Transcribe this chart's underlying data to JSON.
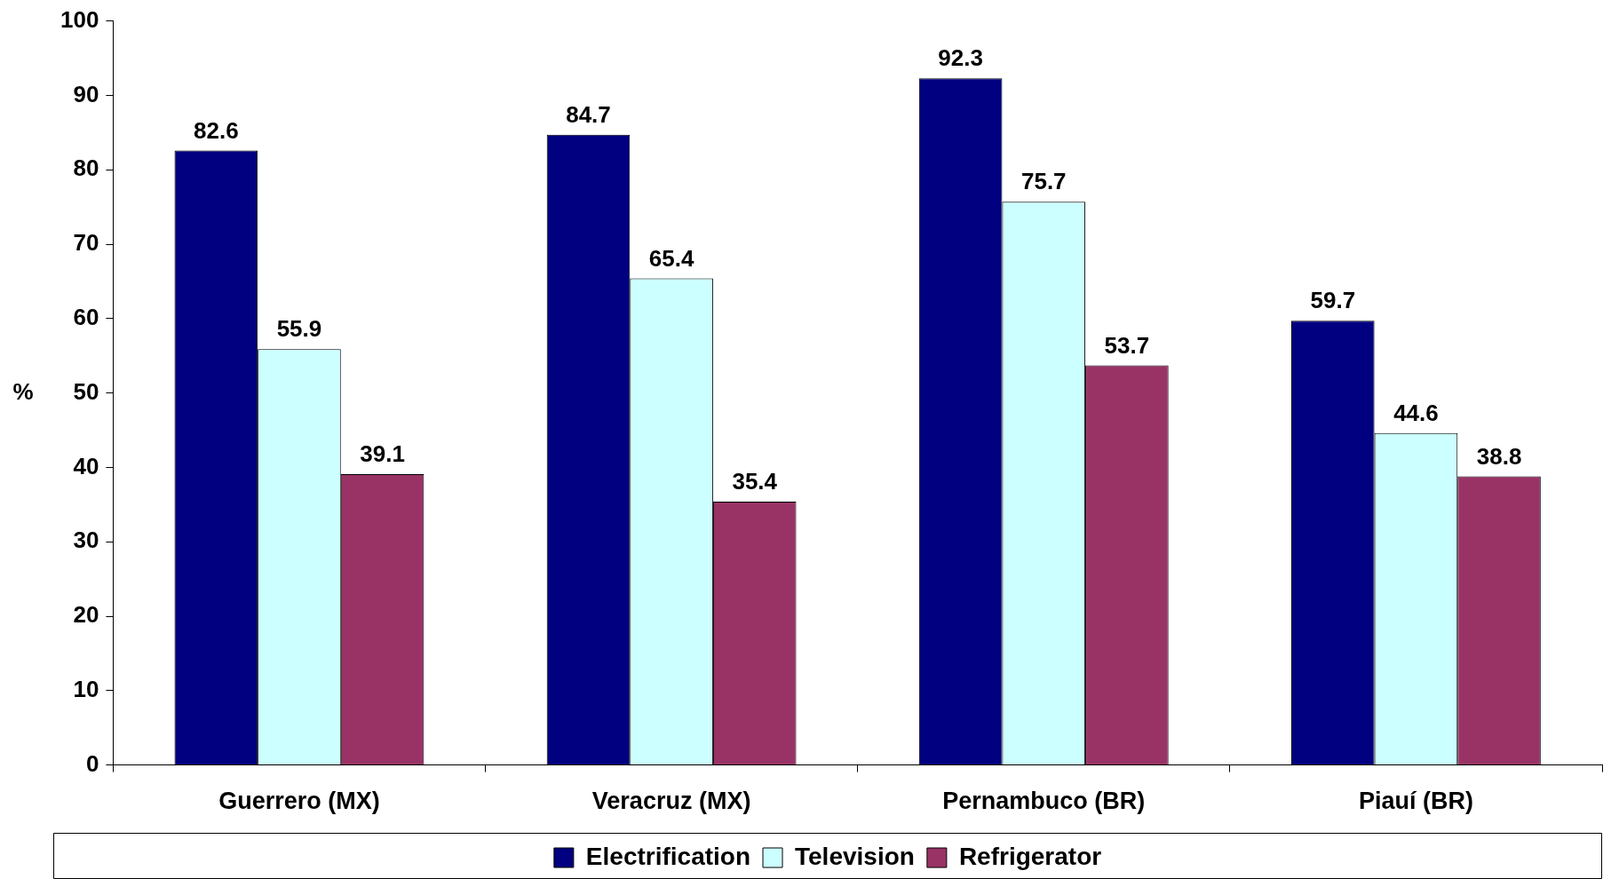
{
  "chart_data": {
    "type": "bar",
    "ylabel": "%",
    "categories": [
      "Guerrero (MX)",
      "Veracruz (MX)",
      "Pernambuco (BR)",
      "Piauí (BR)"
    ],
    "series": [
      {
        "name": "Electrification",
        "color": "#000080",
        "values": [
          82.6,
          84.7,
          92.3,
          59.7
        ]
      },
      {
        "name": "Television",
        "color": "#ccffff",
        "values": [
          55.9,
          65.4,
          75.7,
          44.6
        ]
      },
      {
        "name": "Refrigerator",
        "color": "#993366",
        "values": [
          39.1,
          35.4,
          53.7,
          38.8
        ]
      }
    ],
    "ylim": [
      0,
      100
    ],
    "yticks": [
      0,
      10,
      20,
      30,
      40,
      50,
      60,
      70,
      80,
      90,
      100
    ],
    "grid": false,
    "legend": "bottom",
    "data_labels": true
  }
}
